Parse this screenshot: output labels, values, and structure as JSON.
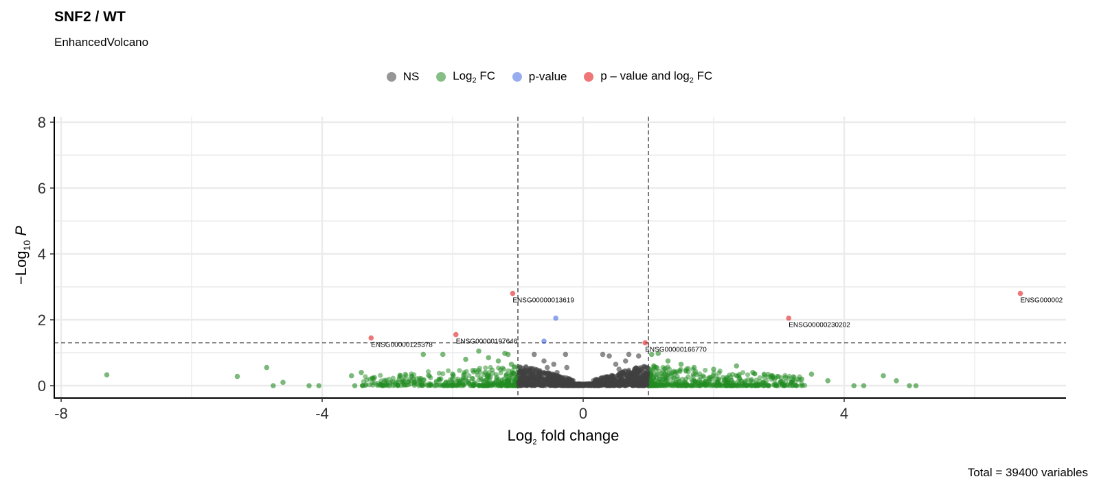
{
  "chart_data": {
    "type": "scatter",
    "title": "SNF2 / WT",
    "subtitle": "EnhancedVolcano",
    "caption": "Total = 39400 variables",
    "xlabel": "Log2 fold change",
    "ylabel": "−Log10 P",
    "xlim": [
      -8,
      7.3
    ],
    "ylim": [
      0,
      8
    ],
    "x_ticks": [
      "-8",
      "-4",
      "0",
      "4"
    ],
    "y_ticks": [
      "0",
      "2",
      "4",
      "6",
      "8"
    ],
    "fc_cutoff": 1,
    "p_cutoff_neglog10": 1.3,
    "grid": true,
    "legend_position": "top",
    "legend": [
      {
        "key": "NS",
        "label": "NS",
        "color": "#3f3f3f"
      },
      {
        "key": "FC",
        "label": "Log2 FC",
        "color": "#228b22"
      },
      {
        "key": "P",
        "label": "p-value",
        "color": "#4169e1"
      },
      {
        "key": "FC_P",
        "label": "p – value and log2 FC",
        "color": "#e41a1c"
      }
    ],
    "series": [
      {
        "name": "NS",
        "color": "#3f3f3f",
        "points": [
          [
            -0.75,
            0.95
          ],
          [
            -0.6,
            0.75
          ],
          [
            -0.55,
            0.55
          ],
          [
            -0.45,
            0.65
          ],
          [
            -0.27,
            0.95
          ],
          [
            -0.4,
            0.4
          ],
          [
            -0.25,
            0.55
          ],
          [
            0.3,
            0.95
          ],
          [
            0.4,
            0.9
          ],
          [
            0.5,
            0.65
          ],
          [
            0.55,
            0.5
          ],
          [
            0.65,
            0.75
          ],
          [
            0.7,
            0.95
          ],
          [
            0.85,
            0.9
          ],
          [
            0.45,
            0.3
          ]
        ]
      },
      {
        "name": "Log2 FC",
        "color": "#228b22",
        "points": [
          [
            -7.3,
            0.33
          ],
          [
            -5.3,
            0.28
          ],
          [
            -4.85,
            0.55
          ],
          [
            -4.75,
            0.0
          ],
          [
            -4.6,
            0.1
          ],
          [
            -4.2,
            0.0
          ],
          [
            -4.05,
            0.0
          ],
          [
            -3.55,
            0.3
          ],
          [
            -3.5,
            0.0
          ],
          [
            -3.4,
            0.4
          ],
          [
            -3.2,
            0.25
          ],
          [
            -2.45,
            0.95
          ],
          [
            -2.15,
            0.95
          ],
          [
            -1.8,
            0.8
          ],
          [
            -1.6,
            1.05
          ],
          [
            -1.45,
            0.85
          ],
          [
            -1.3,
            0.75
          ],
          [
            -1.2,
            0.98
          ],
          [
            -1.15,
            0.95
          ],
          [
            -1.1,
            0.65
          ],
          [
            -2.8,
            0.3
          ],
          [
            -2.6,
            0.2
          ],
          [
            -2.0,
            0.35
          ],
          [
            -1.5,
            0.4
          ],
          [
            1.05,
            0.95
          ],
          [
            1.15,
            0.98
          ],
          [
            1.3,
            0.75
          ],
          [
            1.5,
            0.65
          ],
          [
            1.7,
            0.55
          ],
          [
            2.0,
            0.5
          ],
          [
            2.35,
            0.6
          ],
          [
            2.6,
            0.4
          ],
          [
            2.9,
            0.3
          ],
          [
            3.1,
            0.25
          ],
          [
            3.35,
            0.2
          ],
          [
            3.5,
            0.35
          ],
          [
            3.75,
            0.15
          ],
          [
            4.15,
            0.0
          ],
          [
            4.3,
            0.0
          ],
          [
            4.6,
            0.3
          ],
          [
            4.8,
            0.15
          ],
          [
            5.0,
            0.0
          ],
          [
            5.1,
            0.0
          ],
          [
            3.2,
            0.1
          ],
          [
            3.05,
            0.05
          ]
        ]
      },
      {
        "name": "p-value",
        "color": "#4169e1",
        "points": [
          [
            -0.42,
            2.05
          ],
          [
            -0.6,
            1.35
          ]
        ]
      },
      {
        "name": "p – value and log2 FC",
        "color": "#e41a1c",
        "points": [
          [
            -1.08,
            2.8
          ],
          [
            -3.25,
            1.45
          ],
          [
            -1.95,
            1.55
          ],
          [
            0.95,
            1.3
          ],
          [
            3.15,
            2.05
          ],
          [
            6.7,
            2.8
          ]
        ]
      }
    ],
    "labels": [
      {
        "text": "ENSG00000013619",
        "x": -1.08,
        "y": 2.8
      },
      {
        "text": "ENSG00000125378",
        "x": -3.25,
        "y": 1.45
      },
      {
        "text": "ENSG00000197646",
        "x": -1.95,
        "y": 1.55
      },
      {
        "text": "ENSG00000166770",
        "x": 0.95,
        "y": 1.3
      },
      {
        "text": "ENSG00000230202",
        "x": 3.15,
        "y": 2.05
      },
      {
        "text": "ENSG000002",
        "x": 6.7,
        "y": 2.8
      }
    ]
  }
}
